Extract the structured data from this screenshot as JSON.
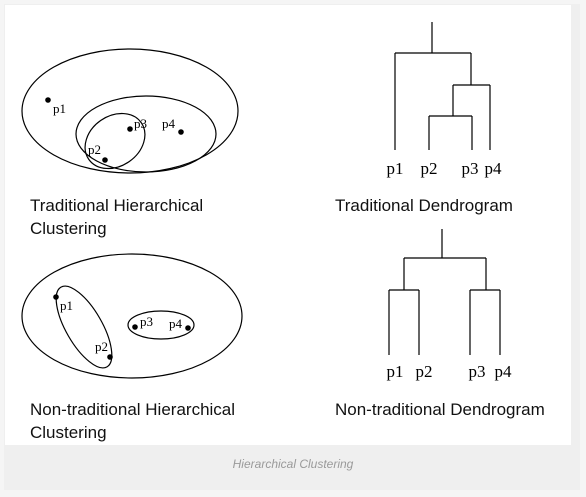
{
  "panels": {
    "trad_clustering": {
      "caption_line1": "Traditional Hierarchical",
      "caption_line2": "Clustering",
      "points": [
        "p1",
        "p2",
        "p3",
        "p4"
      ]
    },
    "trad_dendrogram": {
      "caption": "Traditional Dendrogram",
      "leaves": [
        "p1",
        "p2",
        "p3",
        "p4"
      ]
    },
    "nontrad_clustering": {
      "caption_line1": "Non-traditional Hierarchical",
      "caption_line2": "Clustering",
      "points": [
        "p1",
        "p2",
        "p3",
        "p4"
      ]
    },
    "nontrad_dendrogram": {
      "caption": "Non-traditional Dendrogram",
      "leaves": [
        "p1",
        "p2",
        "p3",
        "p4"
      ]
    }
  },
  "figure_caption": "Hierarchical Clustering"
}
